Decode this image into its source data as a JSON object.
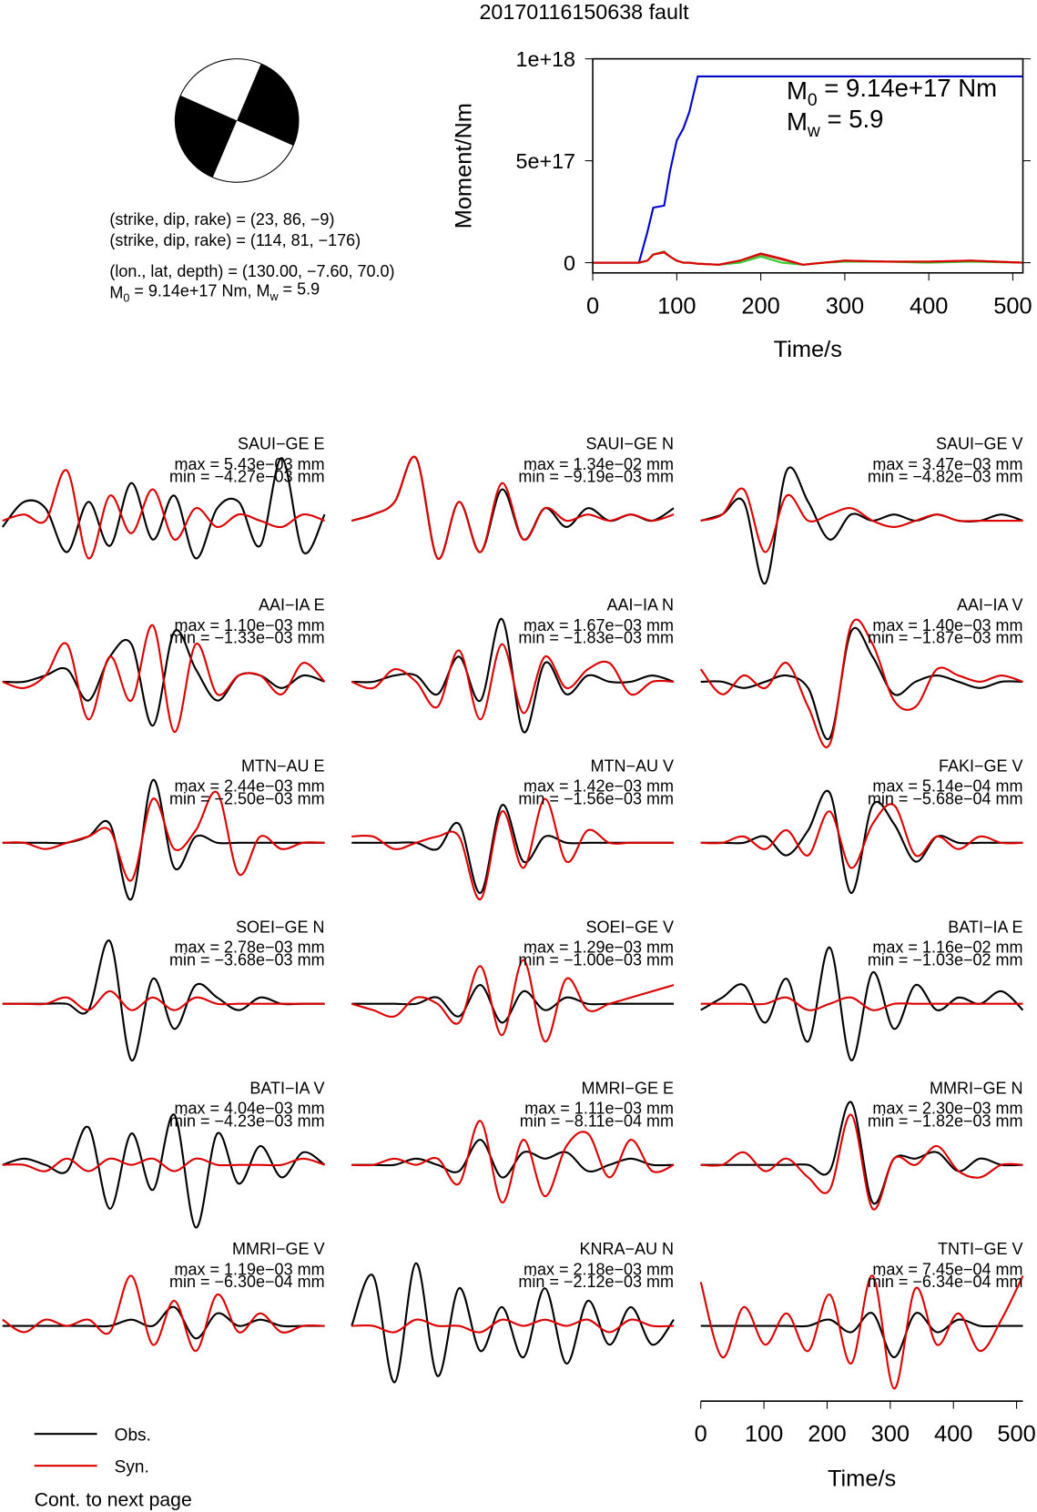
{
  "title": "20170116150638 fault",
  "mechanism": {
    "lines": [
      "(strike, dip, rake) = (23, 86, −9)",
      "(strike, dip, rake) = (114, 81, −176)",
      "(lon., lat, depth) = (130.00, −7.60, 70.0)"
    ],
    "moment_line": [
      "M",
      "0",
      " = 9.14e+17 Nm, M",
      "w",
      " = 5.9"
    ]
  },
  "chart_data": {
    "type": "line",
    "xlabel": "Time/s",
    "ylabel": "Moment/Nm",
    "annotations": [
      [
        "M",
        "0",
        " = 9.14e+17 Nm"
      ],
      [
        "M",
        "w",
        " = 5.9"
      ]
    ],
    "x": [
      0,
      55,
      65,
      72,
      85,
      92,
      100,
      108,
      115,
      125,
      150,
      175,
      200,
      225,
      250,
      275,
      300,
      350,
      400,
      450,
      512
    ],
    "series": [
      {
        "color": "#0000cc",
        "values": [
          0,
          0,
          1.5e+17,
          2.7e+17,
          2.8e+17,
          4.5e+17,
          6e+17,
          6.6e+17,
          7.4e+17,
          9.14e+17,
          9.14e+17,
          9.14e+17,
          9.14e+17,
          9.14e+17,
          9.14e+17,
          9.14e+17,
          9.14e+17,
          9.14e+17,
          9.14e+17,
          9.14e+17,
          9.14e+17
        ]
      },
      {
        "color": "#33cc33",
        "values": [
          0,
          0,
          1e+16,
          4e+16,
          5e+16,
          3e+16,
          1e+16,
          0,
          0,
          -5000000000000000.0,
          -1e+16,
          0,
          3e+16,
          0,
          -1e+16,
          0,
          5000000000000000.0,
          5000000000000000.0,
          0,
          5000000000000000.0,
          0
        ]
      },
      {
        "color": "#996633",
        "values": [
          0,
          0,
          1e+16,
          4e+16,
          5.5e+16,
          3e+16,
          1e+16,
          0,
          0,
          -5000000000000000.0,
          -1e+16,
          1e+16,
          4e+16,
          1.5e+16,
          -1e+16,
          0,
          1e+16,
          5000000000000000.0,
          5000000000000000.0,
          1e+16,
          0
        ]
      },
      {
        "color": "#dd0000",
        "values": [
          0,
          0,
          1e+16,
          4e+16,
          5e+16,
          3e+16,
          1e+16,
          0,
          0,
          -5000000000000000.0,
          -1e+16,
          1e+16,
          4.5e+16,
          2e+16,
          -1e+16,
          0,
          1e+16,
          5000000000000000.0,
          5000000000000000.0,
          1e+16,
          0
        ]
      }
    ],
    "xlim": [
      0,
      512
    ],
    "ylim": [
      -5e+16,
      1e+18
    ],
    "xticks": [
      0,
      100,
      200,
      300,
      400,
      500
    ],
    "yticks": [
      0,
      {
        "value": 5e+17,
        "label": "5e+17"
      },
      {
        "value": 1e+18,
        "label": "1e+18"
      }
    ]
  },
  "waveforms": {
    "obs_color": "#000000",
    "syn_color": "#dd0000",
    "legend": [
      "Obs.",
      "Syn."
    ],
    "xlabel": "Time/s",
    "xlim": [
      0,
      510
    ],
    "xticks": [
      0,
      100,
      200,
      300,
      400,
      500
    ],
    "panels": [
      {
        "station": "SAUI−GE E",
        "max": "max = 5.43e−03 mm",
        "min": "min = −4.27e−03 mm",
        "obs": [
          -1,
          3,
          2,
          -5,
          3,
          -4,
          6,
          -3,
          4,
          -6,
          2,
          3,
          -4,
          10,
          -5,
          1
        ],
        "syn": [
          0,
          1,
          0,
          8,
          -6,
          4,
          -2,
          5,
          -3,
          2,
          -1,
          1,
          0,
          -1,
          1,
          0
        ]
      },
      {
        "station": "SAUI−GE N",
        "max": "max = 1.34e−02 mm",
        "min": "min = −9.19e−03 mm",
        "obs": [
          0,
          1,
          3,
          10,
          -6,
          3,
          -5,
          5,
          -3,
          2,
          -1,
          2,
          0,
          1,
          0,
          2
        ],
        "syn": [
          0,
          1,
          3,
          10,
          -6,
          3,
          -5,
          6,
          -3,
          2,
          0,
          1,
          0,
          1,
          0,
          1
        ]
      },
      {
        "station": "SAUI−GE V",
        "max": "max = 3.47e−03 mm",
        "min": "min = −4.82e−03 mm",
        "obs": [
          0,
          1,
          3,
          -10,
          8,
          3,
          -3,
          1,
          0,
          1,
          0,
          1,
          0,
          0,
          1,
          0
        ],
        "syn": [
          0,
          1,
          5,
          -5,
          4,
          0,
          1,
          2,
          0,
          -1,
          0,
          1,
          0,
          0,
          0,
          0
        ]
      },
      {
        "station": "AAI−IA E",
        "max": "max = 1.10e−03 mm",
        "min": "min = −1.33e−03 mm",
        "obs": [
          0,
          0,
          1,
          2,
          -3,
          4,
          6,
          -7,
          8,
          2,
          -3,
          1,
          1,
          -1,
          1,
          0
        ],
        "syn": [
          0,
          -1,
          1,
          6,
          -6,
          4,
          -3,
          9,
          -8,
          6,
          -2,
          1,
          1,
          -2,
          3,
          0
        ]
      },
      {
        "station": "AAI−IA N",
        "max": "max = 1.67e−03 mm",
        "min": "min = −1.83e−03 mm",
        "obs": [
          0,
          0,
          1,
          1,
          -2,
          4,
          -3,
          10,
          -8,
          3,
          -2,
          1,
          0,
          0,
          1,
          0
        ],
        "syn": [
          0,
          -1,
          2,
          0,
          -4,
          5,
          -6,
          6,
          -5,
          4,
          -1,
          2,
          3,
          -2,
          0,
          0
        ]
      },
      {
        "station": "AAI−IA V",
        "max": "max = 1.40e−03 mm",
        "min": "min = −1.87e−03 mm",
        "obs": [
          0,
          0,
          -1,
          0,
          1,
          -1,
          -9,
          8,
          4,
          -2,
          0,
          1,
          0,
          -1,
          0,
          0
        ],
        "syn": [
          2,
          -2,
          1,
          -1,
          3,
          -4,
          -10,
          9,
          6,
          -3,
          -4,
          2,
          1,
          0,
          1,
          0
        ]
      },
      {
        "station": "MTN−AU E",
        "max": "max = 2.44e−03 mm",
        "min": "min = −2.50e−03 mm",
        "obs": [
          0,
          0,
          0,
          0,
          1,
          3,
          -9,
          10,
          -4,
          1,
          0,
          0,
          0,
          0,
          0,
          0
        ],
        "syn": [
          0,
          0,
          -1,
          0,
          1,
          2,
          -6,
          7,
          -1,
          2,
          8,
          -5,
          1,
          -1,
          0,
          0
        ]
      },
      {
        "station": "MTN−AU V",
        "max": "max = 1.42e−03 mm",
        "min": "min = −1.56e−03 mm",
        "obs": [
          0,
          0,
          0,
          0,
          -1,
          3,
          -8,
          6,
          -3,
          1,
          0,
          0,
          0,
          0,
          0,
          0
        ],
        "syn": [
          1,
          1,
          -1,
          0,
          1,
          1,
          -9,
          5,
          -4,
          7,
          -3,
          2,
          0,
          0,
          0,
          0
        ]
      },
      {
        "station": "FAKI−GE V",
        "max": "max = 5.14e−04 mm",
        "min": "min = −5.68e−04 mm",
        "obs": [
          0,
          0,
          0,
          1,
          -2,
          2,
          8,
          -8,
          6,
          3,
          -3,
          1,
          0,
          0,
          0,
          0
        ],
        "syn": [
          0,
          0,
          1,
          -1,
          2,
          -2,
          5,
          -4,
          3,
          6,
          -2,
          1,
          -1,
          1,
          0,
          0
        ]
      },
      {
        "station": "SOEI−GE N",
        "max": "max = 2.78e−03 mm",
        "min": "min = −3.68e−03 mm",
        "obs": [
          0,
          0,
          0,
          0,
          -1,
          10,
          -9,
          4,
          -4,
          3,
          1,
          -1,
          1,
          0,
          0,
          0
        ],
        "syn": [
          0,
          0,
          0,
          1,
          -1,
          2,
          -1,
          1,
          -1,
          1,
          0,
          0,
          0,
          0,
          0,
          0
        ]
      },
      {
        "station": "SOEI−GE V",
        "max": "max = 1.29e−03 mm",
        "min": "min = −1.00e−03 mm",
        "obs": [
          0,
          0,
          0,
          0,
          1,
          -2,
          3,
          -3,
          2,
          -1,
          1,
          0,
          0,
          0,
          0,
          0
        ],
        "syn": [
          0,
          -1,
          -2,
          1,
          0,
          -3,
          6,
          -5,
          7,
          -6,
          4,
          -1,
          0,
          1,
          2,
          3
        ]
      },
      {
        "station": "BATI−IA E",
        "max": "max = 1.16e−02 mm",
        "min": "min = −1.03e−02 mm",
        "obs": [
          -1,
          1,
          3,
          -3,
          4,
          -6,
          9,
          -9,
          5,
          -4,
          3,
          -1,
          1,
          0,
          2,
          -1
        ],
        "syn": [
          0,
          0,
          0,
          0,
          1,
          -1,
          0,
          1,
          -1,
          0,
          0,
          0,
          0,
          0,
          0,
          0
        ]
      },
      {
        "station": "BATI−IA V",
        "max": "max = 4.04e−03 mm",
        "min": "min = −4.23e−03 mm",
        "obs": [
          0,
          1,
          0,
          -1,
          6,
          -7,
          5,
          -4,
          8,
          -10,
          5,
          -3,
          3,
          -2,
          2,
          0
        ],
        "syn": [
          0,
          0,
          -1,
          1,
          -1,
          1,
          0,
          1,
          -1,
          1,
          0,
          0,
          0,
          0,
          1,
          0
        ]
      },
      {
        "station": "MMRI−GE E",
        "max": "max = 1.11e−03 mm",
        "min": "min = −8.11e−04 mm",
        "obs": [
          0,
          0,
          0,
          1,
          0,
          -1,
          4,
          -2,
          2,
          1,
          2,
          -1,
          0,
          1,
          0,
          0
        ],
        "syn": [
          0,
          0,
          1,
          0,
          1,
          -3,
          7,
          -6,
          4,
          -5,
          3,
          5,
          -2,
          4,
          -1,
          0
        ]
      },
      {
        "station": "MMRI−GE N",
        "max": "max = 2.30e−03 mm",
        "min": "min = −1.82e−03 mm",
        "obs": [
          0,
          0,
          0,
          0,
          0,
          0,
          -1,
          10,
          -6,
          1,
          1,
          2,
          -1,
          1,
          0,
          0
        ],
        "syn": [
          0,
          0,
          2,
          -1,
          1,
          -2,
          -4,
          8,
          -7,
          1,
          0,
          3,
          -1,
          -2,
          0,
          0
        ]
      },
      {
        "station": "MMRI−GE V",
        "max": "max = 1.19e−03 mm",
        "min": "min = −6.30e−04 mm",
        "obs": [
          0,
          0,
          0,
          0,
          0,
          0,
          1,
          0,
          3,
          -2,
          2,
          0,
          1,
          0,
          0,
          0
        ],
        "syn": [
          1,
          -1,
          1,
          0,
          1,
          -1,
          8,
          -3,
          4,
          -4,
          5,
          -1,
          2,
          -1,
          0,
          0
        ]
      },
      {
        "station": "KNRA−AU N",
        "max": "max = 2.18e−03 mm",
        "min": "min = −2.12e−03 mm",
        "obs": [
          0,
          8,
          -9,
          10,
          -8,
          6,
          -4,
          3,
          -5,
          6,
          -6,
          4,
          -3,
          3,
          -3,
          1
        ],
        "syn": [
          0,
          0,
          -1,
          1,
          0,
          0,
          -1,
          1,
          0,
          1,
          0,
          1,
          -1,
          1,
          0,
          0
        ]
      },
      {
        "station": "TNTI−GE V",
        "max": "max = 7.45e−04 mm",
        "min": "min = −6.34e−04 mm",
        "obs": [
          0,
          0,
          0,
          0,
          0,
          0,
          1,
          -1,
          2,
          -5,
          2,
          -1,
          1,
          0,
          0,
          0
        ],
        "syn": [
          7,
          -5,
          3,
          -3,
          2,
          -4,
          5,
          -6,
          8,
          -10,
          6,
          -3,
          2,
          -4,
          1,
          8
        ]
      }
    ]
  },
  "footer": "Cont. to next page"
}
